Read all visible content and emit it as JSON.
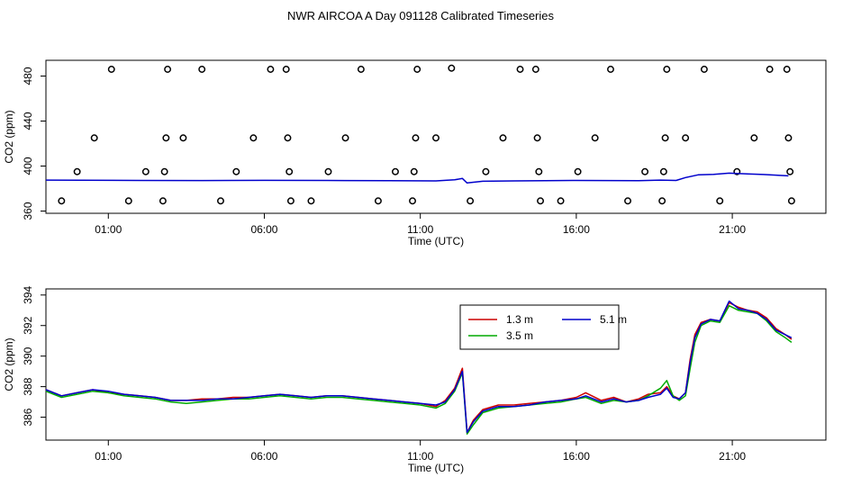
{
  "title": "NWR AIRCOA A  Day 091128  Calibrated Timeseries",
  "chart_data": [
    {
      "type": "scatter",
      "xlabel": "Time (UTC)",
      "ylabel": "CO2 (ppm)",
      "xlim": [
        -1.0,
        24.0
      ],
      "ylim": [
        358,
        494
      ],
      "x_ticks": [
        1,
        6,
        11,
        16,
        21
      ],
      "x_tick_labels": [
        "01:00",
        "06:00",
        "11:00",
        "16:00",
        "21:00"
      ],
      "y_ticks": [
        360,
        400,
        440,
        480
      ],
      "grid": false,
      "series": [
        {
          "role": "flag-points",
          "color": "#000000",
          "points": [
            [
              -0.5,
              369
            ],
            [
              0.0,
              395
            ],
            [
              0.55,
              425
            ],
            [
              1.1,
              486
            ],
            [
              1.65,
              369
            ],
            [
              2.2,
              395
            ],
            [
              2.75,
              369
            ],
            [
              2.8,
              395
            ],
            [
              2.85,
              425
            ],
            [
              2.9,
              486
            ],
            [
              3.4,
              425
            ],
            [
              4.0,
              486
            ],
            [
              4.6,
              369
            ],
            [
              5.1,
              395
            ],
            [
              5.65,
              425
            ],
            [
              6.2,
              486
            ],
            [
              6.7,
              486
            ],
            [
              6.75,
              425
            ],
            [
              6.8,
              395
            ],
            [
              6.85,
              369
            ],
            [
              7.5,
              369
            ],
            [
              8.05,
              395
            ],
            [
              8.6,
              425
            ],
            [
              9.1,
              486
            ],
            [
              9.65,
              369
            ],
            [
              10.2,
              395
            ],
            [
              10.75,
              369
            ],
            [
              10.8,
              395
            ],
            [
              10.85,
              425
            ],
            [
              10.9,
              486
            ],
            [
              11.5,
              425
            ],
            [
              12.0,
              487
            ],
            [
              12.6,
              369
            ],
            [
              13.1,
              395
            ],
            [
              13.65,
              425
            ],
            [
              14.2,
              486
            ],
            [
              14.7,
              486
            ],
            [
              14.75,
              425
            ],
            [
              14.8,
              395
            ],
            [
              14.85,
              369
            ],
            [
              15.5,
              369
            ],
            [
              16.05,
              395
            ],
            [
              16.6,
              425
            ],
            [
              17.1,
              486
            ],
            [
              17.65,
              369
            ],
            [
              18.2,
              395
            ],
            [
              18.75,
              369
            ],
            [
              18.8,
              395
            ],
            [
              18.85,
              425
            ],
            [
              18.9,
              486
            ],
            [
              19.5,
              425
            ],
            [
              20.1,
              486
            ],
            [
              20.6,
              369
            ],
            [
              21.15,
              395
            ],
            [
              21.7,
              425
            ],
            [
              22.2,
              486
            ],
            [
              22.75,
              486
            ],
            [
              22.8,
              425
            ],
            [
              22.85,
              395
            ],
            [
              22.9,
              369
            ]
          ]
        },
        {
          "role": "timeseries",
          "color": "#0000cc",
          "points": [
            [
              -1.0,
              387.5
            ],
            [
              2.0,
              387.2
            ],
            [
              4.0,
              387.1
            ],
            [
              6.0,
              387.3
            ],
            [
              8.0,
              387.2
            ],
            [
              10.0,
              387.0
            ],
            [
              11.5,
              386.8
            ],
            [
              12.1,
              387.8
            ],
            [
              12.35,
              389.0
            ],
            [
              12.5,
              385.0
            ],
            [
              13.0,
              386.5
            ],
            [
              14.0,
              386.8
            ],
            [
              15.0,
              387.0
            ],
            [
              16.0,
              387.2
            ],
            [
              17.0,
              387.1
            ],
            [
              18.0,
              387.0
            ],
            [
              18.7,
              387.5
            ],
            [
              19.2,
              387.2
            ],
            [
              19.5,
              389.8
            ],
            [
              19.9,
              392.2
            ],
            [
              20.4,
              392.6
            ],
            [
              20.9,
              393.7
            ],
            [
              21.5,
              393.0
            ],
            [
              22.0,
              392.5
            ],
            [
              22.8,
              391.3
            ]
          ]
        }
      ]
    },
    {
      "type": "line",
      "xlabel": "Time (UTC)",
      "ylabel": "CO2 (ppm)",
      "xlim": [
        -1.0,
        24.0
      ],
      "ylim": [
        384.5,
        394.4
      ],
      "x_ticks": [
        1,
        6,
        11,
        16,
        21
      ],
      "x_tick_labels": [
        "01:00",
        "06:00",
        "11:00",
        "16:00",
        "21:00"
      ],
      "y_ticks": [
        386,
        388,
        390,
        392,
        394
      ],
      "grid": false,
      "legend": "top-right",
      "series": [
        {
          "name": "1.3 m",
          "color": "#cc0000",
          "x": [
            -1.0,
            -0.5,
            0.0,
            0.5,
            1.0,
            1.5,
            2.0,
            2.5,
            3.0,
            3.5,
            4.0,
            4.5,
            5.0,
            5.5,
            6.0,
            6.5,
            7.0,
            7.5,
            8.0,
            8.5,
            9.0,
            9.5,
            10.0,
            10.5,
            11.0,
            11.5,
            11.8,
            12.1,
            12.35,
            12.5,
            12.7,
            13.0,
            13.5,
            14.0,
            14.5,
            15.0,
            15.5,
            16.0,
            16.3,
            16.8,
            17.2,
            17.6,
            18.0,
            18.3,
            18.7,
            18.9,
            19.1,
            19.3,
            19.5,
            19.65,
            19.8,
            20.0,
            20.3,
            20.6,
            20.9,
            21.2,
            21.5,
            21.8,
            22.1,
            22.4,
            22.7,
            22.9
          ],
          "y": [
            387.8,
            387.4,
            387.6,
            387.8,
            387.6,
            387.5,
            387.4,
            387.3,
            387.1,
            387.1,
            387.2,
            387.2,
            387.3,
            387.3,
            387.4,
            387.5,
            387.4,
            387.3,
            387.4,
            387.4,
            387.3,
            387.2,
            387.1,
            387.0,
            386.9,
            386.7,
            387.1,
            387.9,
            389.2,
            385.0,
            385.8,
            386.5,
            386.8,
            386.8,
            386.9,
            387.0,
            387.1,
            387.3,
            387.6,
            387.1,
            387.3,
            387.0,
            387.2,
            387.5,
            387.6,
            388.0,
            387.4,
            387.2,
            387.6,
            389.8,
            391.4,
            392.2,
            392.4,
            392.3,
            393.5,
            393.2,
            393.0,
            392.9,
            392.5,
            391.8,
            391.4,
            391.1
          ]
        },
        {
          "name": "3.5 m",
          "color": "#00aa00",
          "x": [
            -1.0,
            -0.5,
            0.0,
            0.5,
            1.0,
            1.5,
            2.0,
            2.5,
            3.0,
            3.5,
            4.0,
            4.5,
            5.0,
            5.5,
            6.0,
            6.5,
            7.0,
            7.5,
            8.0,
            8.5,
            9.0,
            9.5,
            10.0,
            10.5,
            11.0,
            11.5,
            11.8,
            12.1,
            12.35,
            12.5,
            12.7,
            13.0,
            13.5,
            14.0,
            14.5,
            15.0,
            15.5,
            16.0,
            16.3,
            16.8,
            17.2,
            17.6,
            18.0,
            18.3,
            18.7,
            18.9,
            19.1,
            19.3,
            19.5,
            19.65,
            19.8,
            20.0,
            20.3,
            20.6,
            20.9,
            21.2,
            21.5,
            21.8,
            22.1,
            22.4,
            22.7,
            22.9
          ],
          "y": [
            387.7,
            387.3,
            387.5,
            387.7,
            387.6,
            387.4,
            387.3,
            387.2,
            387.0,
            386.9,
            387.0,
            387.1,
            387.2,
            387.2,
            387.3,
            387.4,
            387.3,
            387.2,
            387.3,
            387.3,
            387.2,
            387.1,
            387.0,
            386.9,
            386.8,
            386.6,
            386.9,
            387.7,
            388.9,
            384.9,
            385.5,
            386.3,
            386.6,
            386.7,
            386.8,
            386.9,
            387.0,
            387.2,
            387.3,
            386.9,
            387.1,
            387.0,
            387.1,
            387.4,
            387.9,
            388.4,
            387.4,
            387.1,
            387.4,
            389.2,
            390.9,
            392.0,
            392.3,
            392.2,
            393.3,
            393.0,
            392.9,
            392.8,
            392.3,
            391.6,
            391.2,
            390.9
          ]
        },
        {
          "name": "5.1 m",
          "color": "#0000cc",
          "x": [
            -1.0,
            -0.5,
            0.0,
            0.5,
            1.0,
            1.5,
            2.0,
            2.5,
            3.0,
            3.5,
            4.0,
            4.5,
            5.0,
            5.5,
            6.0,
            6.5,
            7.0,
            7.5,
            8.0,
            8.5,
            9.0,
            9.5,
            10.0,
            10.5,
            11.0,
            11.5,
            11.8,
            12.1,
            12.35,
            12.5,
            12.7,
            13.0,
            13.5,
            14.0,
            14.5,
            15.0,
            15.5,
            16.0,
            16.3,
            16.8,
            17.2,
            17.6,
            18.0,
            18.3,
            18.7,
            18.9,
            19.1,
            19.3,
            19.5,
            19.65,
            19.8,
            20.0,
            20.3,
            20.6,
            20.9,
            21.2,
            21.5,
            21.8,
            22.1,
            22.4,
            22.7,
            22.9
          ],
          "y": [
            387.8,
            387.4,
            387.6,
            387.8,
            387.7,
            387.5,
            387.4,
            387.3,
            387.1,
            387.1,
            387.1,
            387.2,
            387.2,
            387.3,
            387.4,
            387.5,
            387.4,
            387.3,
            387.4,
            387.4,
            387.3,
            387.2,
            387.1,
            387.0,
            386.9,
            386.8,
            387.0,
            387.8,
            389.0,
            385.0,
            385.7,
            386.4,
            386.7,
            386.7,
            386.8,
            387.0,
            387.1,
            387.2,
            387.4,
            387.0,
            387.2,
            387.0,
            387.1,
            387.3,
            387.5,
            387.9,
            387.3,
            387.2,
            387.6,
            389.6,
            391.2,
            392.1,
            392.4,
            392.3,
            393.6,
            393.1,
            393.0,
            392.8,
            392.4,
            391.7,
            391.4,
            391.2
          ]
        }
      ]
    }
  ]
}
